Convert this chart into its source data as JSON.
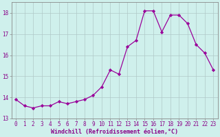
{
  "x": [
    0,
    1,
    2,
    3,
    4,
    5,
    6,
    7,
    8,
    9,
    10,
    11,
    12,
    13,
    14,
    15,
    16,
    17,
    18,
    19,
    20,
    21,
    22,
    23
  ],
  "y": [
    13.9,
    13.6,
    13.5,
    13.6,
    13.6,
    13.8,
    13.7,
    13.8,
    13.9,
    14.1,
    14.5,
    15.3,
    15.1,
    16.4,
    16.7,
    18.1,
    18.1,
    17.1,
    17.9,
    17.9,
    17.5,
    16.5,
    16.1,
    15.3
  ],
  "line_color": "#990099",
  "marker": "D",
  "marker_size": 2.2,
  "bg_color": "#cff0ec",
  "grid_color": "#b0c8c8",
  "xlabel": "Windchill (Refroidissement éolien,°C)",
  "xlim_min": -0.5,
  "xlim_max": 23.5,
  "ylim_min": 13.0,
  "ylim_max": 18.5,
  "yticks": [
    13,
    14,
    15,
    16,
    17,
    18
  ],
  "xticks": [
    0,
    1,
    2,
    3,
    4,
    5,
    6,
    7,
    8,
    9,
    10,
    11,
    12,
    13,
    14,
    15,
    16,
    17,
    18,
    19,
    20,
    21,
    22,
    23
  ],
  "label_color": "#880088",
  "tick_color": "#880088",
  "spine_color": "#888888",
  "tick_fontsize": 5.5,
  "xlabel_fontsize": 6.0
}
